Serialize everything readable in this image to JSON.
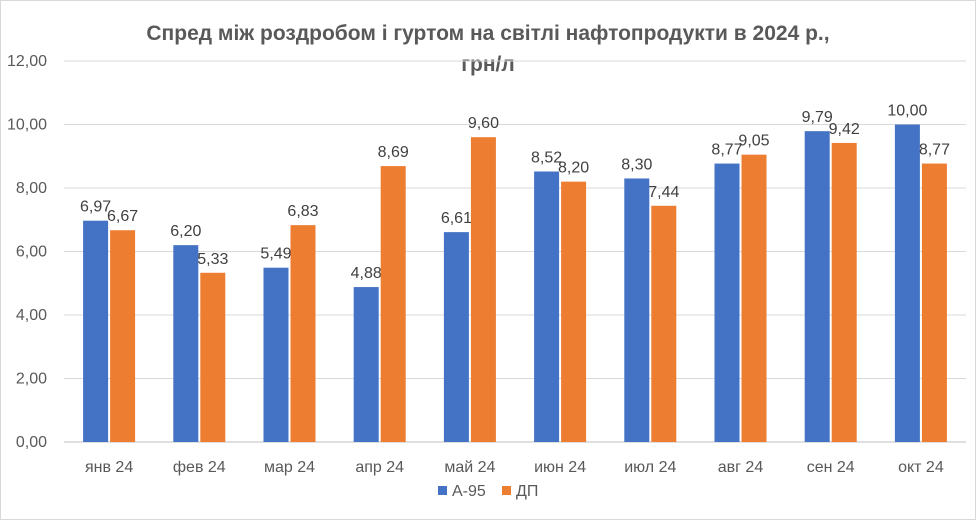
{
  "chart_data": {
    "type": "bar",
    "title": "Спред між роздробом  і гуртом на світлі нафтопродукти в 2024 р.,\nгрн/л",
    "categories": [
      "янв 24",
      "фев 24",
      "мар 24",
      "апр 24",
      "май 24",
      "июн 24",
      "июл 24",
      "авг 24",
      "сен 24",
      "окт 24"
    ],
    "series": [
      {
        "name": "А-95",
        "color": "#4472c4",
        "values": [
          6.97,
          6.2,
          5.49,
          4.88,
          6.61,
          8.52,
          8.3,
          8.77,
          9.79,
          10.0
        ]
      },
      {
        "name": "ДП",
        "color": "#ed7d31",
        "values": [
          6.67,
          5.33,
          6.83,
          8.69,
          9.6,
          8.2,
          7.44,
          9.05,
          9.42,
          8.77
        ]
      }
    ],
    "ylim": [
      0,
      12
    ],
    "yticks": [
      "0,00",
      "2,00",
      "4,00",
      "6,00",
      "8,00",
      "10,00",
      "12,00"
    ],
    "data_labels": [
      [
        "6,97",
        "6,20",
        "5,49",
        "4,88",
        "6,61",
        "8,52",
        "8,30",
        "8,77",
        "9,79",
        "10,00"
      ],
      [
        "6,67",
        "5,33",
        "6,83",
        "8,69",
        "9,60",
        "8,20",
        "7,44",
        "9,05",
        "9,42",
        "8,77"
      ]
    ],
    "grid": true,
    "legend": "bottom"
  }
}
